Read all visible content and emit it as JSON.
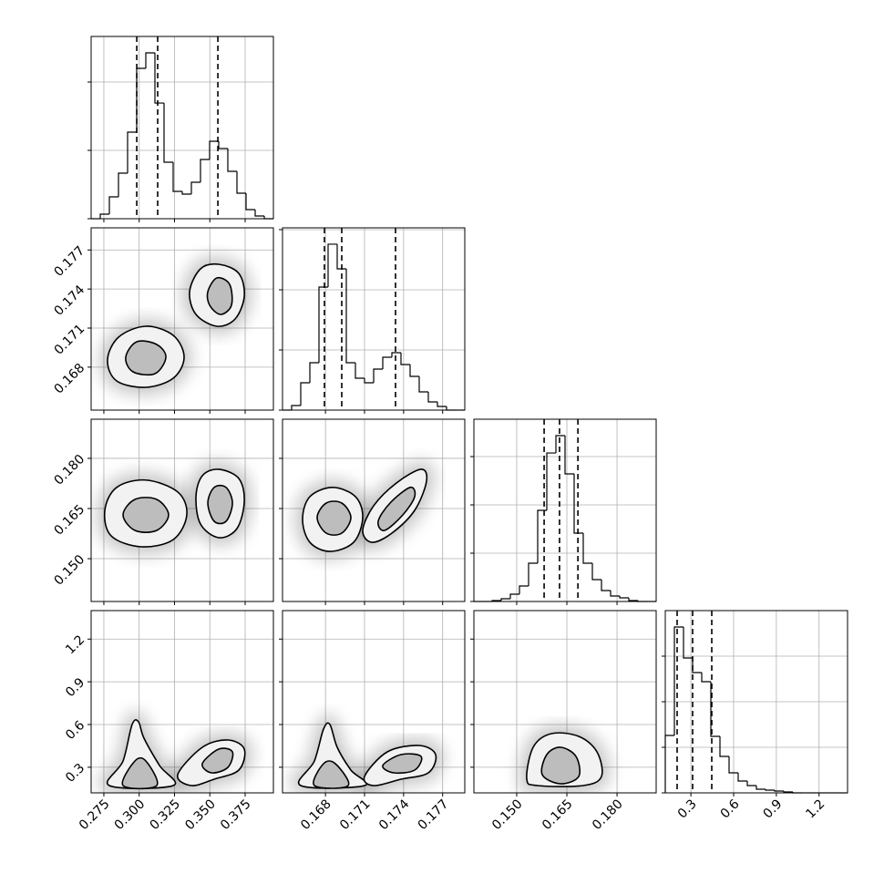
{
  "chart_data": {
    "type": "corner",
    "params": [
      {
        "lim": [
          0.266,
          0.395
        ],
        "ticks": [
          0.275,
          {
            "value": 0.3,
            "label": "0.300"
          },
          0.325,
          {
            "value": 0.35,
            "label": "0.350"
          },
          0.375
        ]
      },
      {
        "lim": [
          0.1647,
          0.1787
        ],
        "ticks": [
          0.168,
          0.171,
          0.174,
          0.177
        ]
      },
      {
        "lim": [
          0.1372,
          0.1917
        ],
        "ticks": [
          {
            "value": 0.15,
            "label": "0.150"
          },
          0.165,
          {
            "value": 0.18,
            "label": "0.180"
          }
        ]
      },
      {
        "lim": [
          0.12,
          1.4
        ],
        "ticks": [
          0.3,
          0.6,
          0.9,
          1.2
        ]
      }
    ],
    "histograms": [
      {
        "bins": [
          0.266,
          0.27245,
          0.2789,
          0.28535,
          0.2918,
          0.29825,
          0.3047,
          0.31115,
          0.3176,
          0.32405,
          0.3305,
          0.33695,
          0.3434,
          0.34985,
          0.3563,
          0.36275,
          0.3692,
          0.37565,
          0.3821,
          0.38855,
          0.395
        ],
        "counts": [
          0,
          67,
          320,
          667,
          1267,
          2200,
          2427,
          1693,
          827,
          400,
          360,
          533,
          867,
          1133,
          1027,
          693,
          373,
          133,
          40,
          0
        ],
        "ylim": [
          0,
          2667
        ],
        "yticks": [
          0,
          1000,
          2000
        ],
        "quantiles": [
          0.2983,
          0.3131,
          0.3557
        ]
      },
      {
        "bins": [
          0.1647,
          0.1654,
          0.1661,
          0.1668,
          0.1675,
          0.1682,
          0.1689,
          0.1696,
          0.1703,
          0.171,
          0.1717,
          0.1724,
          0.1731,
          0.1738,
          0.1745,
          0.1752,
          0.1759,
          0.1766,
          0.1773,
          0.178,
          0.1787
        ],
        "counts": [
          0,
          76,
          455,
          788,
          2045,
          2758,
          2348,
          788,
          530,
          455,
          682,
          879,
          955,
          758,
          561,
          303,
          136,
          61,
          0,
          0
        ],
        "ylim": [
          0,
          3030
        ],
        "yticks": [
          0,
          1000,
          2000,
          3000
        ],
        "quantiles": [
          0.16792,
          0.16925,
          0.17338
        ]
      },
      {
        "bins": [
          0.1372,
          0.139925,
          0.14265,
          0.145375,
          0.1481,
          0.150825,
          0.15355,
          0.156275,
          0.159,
          0.161725,
          0.16445,
          0.167175,
          0.1699,
          0.172625,
          0.17535,
          0.178075,
          0.1808,
          0.183525,
          0.18625,
          0.188975,
          0.1917
        ],
        "counts": [
          0,
          0,
          19,
          57,
          151,
          321,
          792,
          1887,
          3075,
          3434,
          2642,
          1415,
          792,
          453,
          226,
          113,
          75,
          19,
          0,
          0
        ],
        "ylim": [
          0,
          3774
        ],
        "yticks": [
          0,
          1000,
          2000,
          3000
        ],
        "quantiles": [
          0.1582,
          0.1628,
          0.1683
        ]
      },
      {
        "bins": [
          0.12,
          0.184,
          0.248,
          0.312,
          0.376,
          0.44,
          0.504,
          0.568,
          0.632,
          0.696,
          0.76,
          0.824,
          0.888,
          0.952,
          1.016,
          1.08,
          1.144,
          1.208,
          1.272,
          1.336,
          1.4
        ],
        "counts": [
          1260,
          3640,
          2960,
          2640,
          2440,
          1240,
          800,
          440,
          260,
          160,
          80,
          60,
          40,
          20,
          0,
          0,
          0,
          0,
          0,
          0
        ],
        "ylim": [
          0,
          4000
        ],
        "yticks": [
          0,
          1000,
          2000,
          3000
        ],
        "quantiles": [
          0.2032,
          0.312,
          0.4464
        ]
      }
    ],
    "pairs": [
      {
        "outer": [
          {
            "x": [
              0.2776,
              0.2854,
              0.3047,
              0.3241,
              0.3318,
              0.3241,
              0.3047,
              0.2841
            ],
            "y": [
              0.16855,
              0.1703,
              0.17114,
              0.17044,
              0.16876,
              0.16715,
              0.16645,
              0.16694
            ]
          },
          {
            "x": [
              0.3357,
              0.3434,
              0.3563,
              0.3705,
              0.3744,
              0.3679,
              0.355,
              0.3402
            ],
            "y": [
              0.1738,
              0.17555,
              0.1759,
              0.1752,
              0.17345,
              0.1717,
              0.17114,
              0.17205
            ]
          }
        ],
        "inner": [
          {
            "x": [
              0.2905,
              0.2983,
              0.3124,
              0.3189,
              0.3112,
              0.2957
            ],
            "y": [
              0.16876,
              0.16995,
              0.16974,
              0.16876,
              0.1675,
              0.16764
            ]
          },
          {
            "x": [
              0.3486,
              0.355,
              0.364,
              0.3653,
              0.3576,
              0.3499
            ],
            "y": [
              0.1738,
              0.17485,
              0.17436,
              0.17275,
              0.17205,
              0.17275
            ]
          }
        ]
      },
      {
        "outer": [
          {
            "x": [
              0.2757,
              0.2841,
              0.3047,
              0.3273,
              0.3337,
              0.3241,
              0.3015,
              0.2802
            ],
            "y": [
              0.16445,
              0.17131,
              0.17351,
              0.16995,
              0.16309,
              0.1557,
              0.15355,
              0.1568
            ]
          },
          {
            "x": [
              0.3402,
              0.3447,
              0.3563,
              0.3705,
              0.3744,
              0.3692,
              0.3563,
              0.3434
            ],
            "y": [
              0.16854,
              0.17481,
              0.17673,
              0.17399,
              0.16718,
              0.159,
              0.15628,
              0.16036
            ]
          }
        ],
        "inner": [
          {
            "x": [
              0.2886,
              0.297,
              0.3124,
              0.3208,
              0.3124,
              0.297
            ],
            "y": [
              0.16309,
              0.16772,
              0.16772,
              0.16309,
              0.15845,
              0.15845
            ]
          },
          {
            "x": [
              0.3486,
              0.3531,
              0.3615,
              0.366,
              0.3615,
              0.3531
            ],
            "y": [
              0.16663,
              0.17131,
              0.17131,
              0.16663,
              0.16118,
              0.16118
            ]
          }
        ]
      },
      {
        "outer": [
          {
            "x": [
              0.16624,
              0.1668,
              0.16855,
              0.1703,
              0.17086,
              0.17016,
              0.16834,
              0.1668
            ],
            "y": [
              0.16173,
              0.16854,
              0.17131,
              0.16854,
              0.16227,
              0.1549,
              0.15218,
              0.1549
            ]
          },
          {
            "x": [
              0.17086,
              0.1717,
              0.17345,
              0.17534,
              0.17576,
              0.17485,
              0.1731,
              0.17156
            ],
            "y": [
              0.15845,
              0.16582,
              0.17262,
              0.17673,
              0.17317,
              0.16445,
              0.15764,
              0.1549
            ]
          }
        ],
        "inner": [
          {
            "x": [
              0.16736,
              0.16806,
              0.16925,
              0.16995,
              0.16925,
              0.16806
            ],
            "y": [
              0.16227,
              0.16663,
              0.16663,
              0.16227,
              0.15764,
              0.15764
            ]
          },
          {
            "x": [
              0.17205,
              0.17296,
              0.1745,
              0.17485,
              0.17394,
              0.17254
            ],
            "y": [
              0.16118,
              0.16663,
              0.17131,
              0.16854,
              0.16309,
              0.15845
            ]
          }
        ]
      },
      {
        "outer": [
          {
            "x": [
              0.2789,
              0.2886,
              0.295,
              0.2995,
              0.3034,
              0.3144,
              0.3241
            ],
            "y": [
              0.1712,
              0.344,
              0.6,
              0.6192,
              0.504,
              0.312,
              0.1712
            ]
          },
          {
            "x": [
              0.3273,
              0.3447,
              0.3628,
              0.3744,
              0.3705,
              0.3531,
              0.337
            ],
            "y": [
              0.248,
              0.44,
              0.4912,
              0.4272,
              0.28,
              0.216,
              0.1712
            ]
          }
        ],
        "inner": [
          {
            "x": [
              0.2886,
              0.297,
              0.3047,
              0.3124
            ],
            "y": [
              0.1712,
              0.344,
              0.344,
              0.1712
            ]
          },
          {
            "x": [
              0.3447,
              0.3563,
              0.366,
              0.3628,
              0.3512
            ],
            "y": [
              0.3248,
              0.4272,
              0.408,
              0.2992,
              0.2608
            ]
          }
        ]
      },
      {
        "outer": [
          {
            "x": [
              0.1661,
              0.16715,
              0.16785,
              0.16834,
              0.1689,
              0.16995,
              0.171
            ],
            "y": [
              0.1712,
              0.344,
              0.568,
              0.6,
              0.44,
              0.28,
              0.1712
            ]
          },
          {
            "x": [
              0.171,
              0.17275,
              0.1752,
              0.17646,
              0.1759,
              0.1738,
              0.1717
            ],
            "y": [
              0.2352,
              0.408,
              0.4528,
              0.3888,
              0.2608,
              0.216,
              0.1712
            ]
          }
        ],
        "inner": [
          {
            "x": [
              0.16715,
              0.16785,
              0.16876,
              0.16974
            ],
            "y": [
              0.1712,
              0.3248,
              0.3248,
              0.1712
            ]
          },
          {
            "x": [
              0.1724,
              0.1738,
              0.17534,
              0.17485,
              0.17324
            ],
            "y": [
              0.312,
              0.3888,
              0.376,
              0.28,
              0.2608
            ]
          }
        ]
      },
      {
        "outer": [
          {
            "x": [
              0.15301,
              0.15491,
              0.16036,
              0.16854,
              0.17399,
              0.17535,
              0.1699,
              0.15628
            ],
            "y": [
              0.216,
              0.44,
              0.536,
              0.5168,
              0.408,
              0.2352,
              0.1712,
              0.1712
            ]
          }
        ],
        "inner": [
          {
            "x": [
              0.15764,
              0.159,
              0.16309,
              0.16772,
              0.16854,
              0.16309
            ],
            "y": [
              0.248,
              0.3888,
              0.44,
              0.376,
              0.2352,
              0.184
            ]
          }
        ]
      }
    ]
  }
}
